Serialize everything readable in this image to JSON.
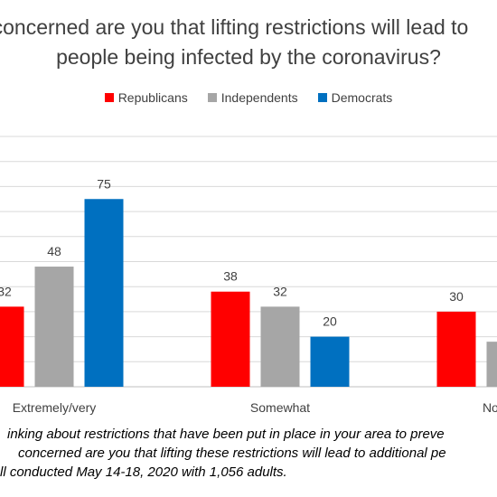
{
  "chart_data": {
    "type": "bar",
    "title_line1": "concerned are you that lifting restrictions will lead to",
    "title_line2": "people being infected by the coronavirus?",
    "categories": [
      "Extremely/very",
      "Somewhat",
      "Not very"
    ],
    "series": [
      {
        "name": "Republicans",
        "color": "#ff0000",
        "values": [
          32,
          38,
          30
        ]
      },
      {
        "name": "Independents",
        "color": "#a6a6a6",
        "values": [
          48,
          32,
          18
        ]
      },
      {
        "name": "Democrats",
        "color": "#0070c0",
        "values": [
          75,
          20,
          null
        ]
      }
    ],
    "ylim": [
      0,
      100
    ],
    "grid": true,
    "legend_position": "top"
  },
  "notes": {
    "line1": "inking about restrictions that have been put in place in your area to preve",
    "line2": "concerned are you that lifting these restrictions will lead to additional pe",
    "line3": "ll conducted May 14-18, 2020 with 1,056 adults."
  }
}
